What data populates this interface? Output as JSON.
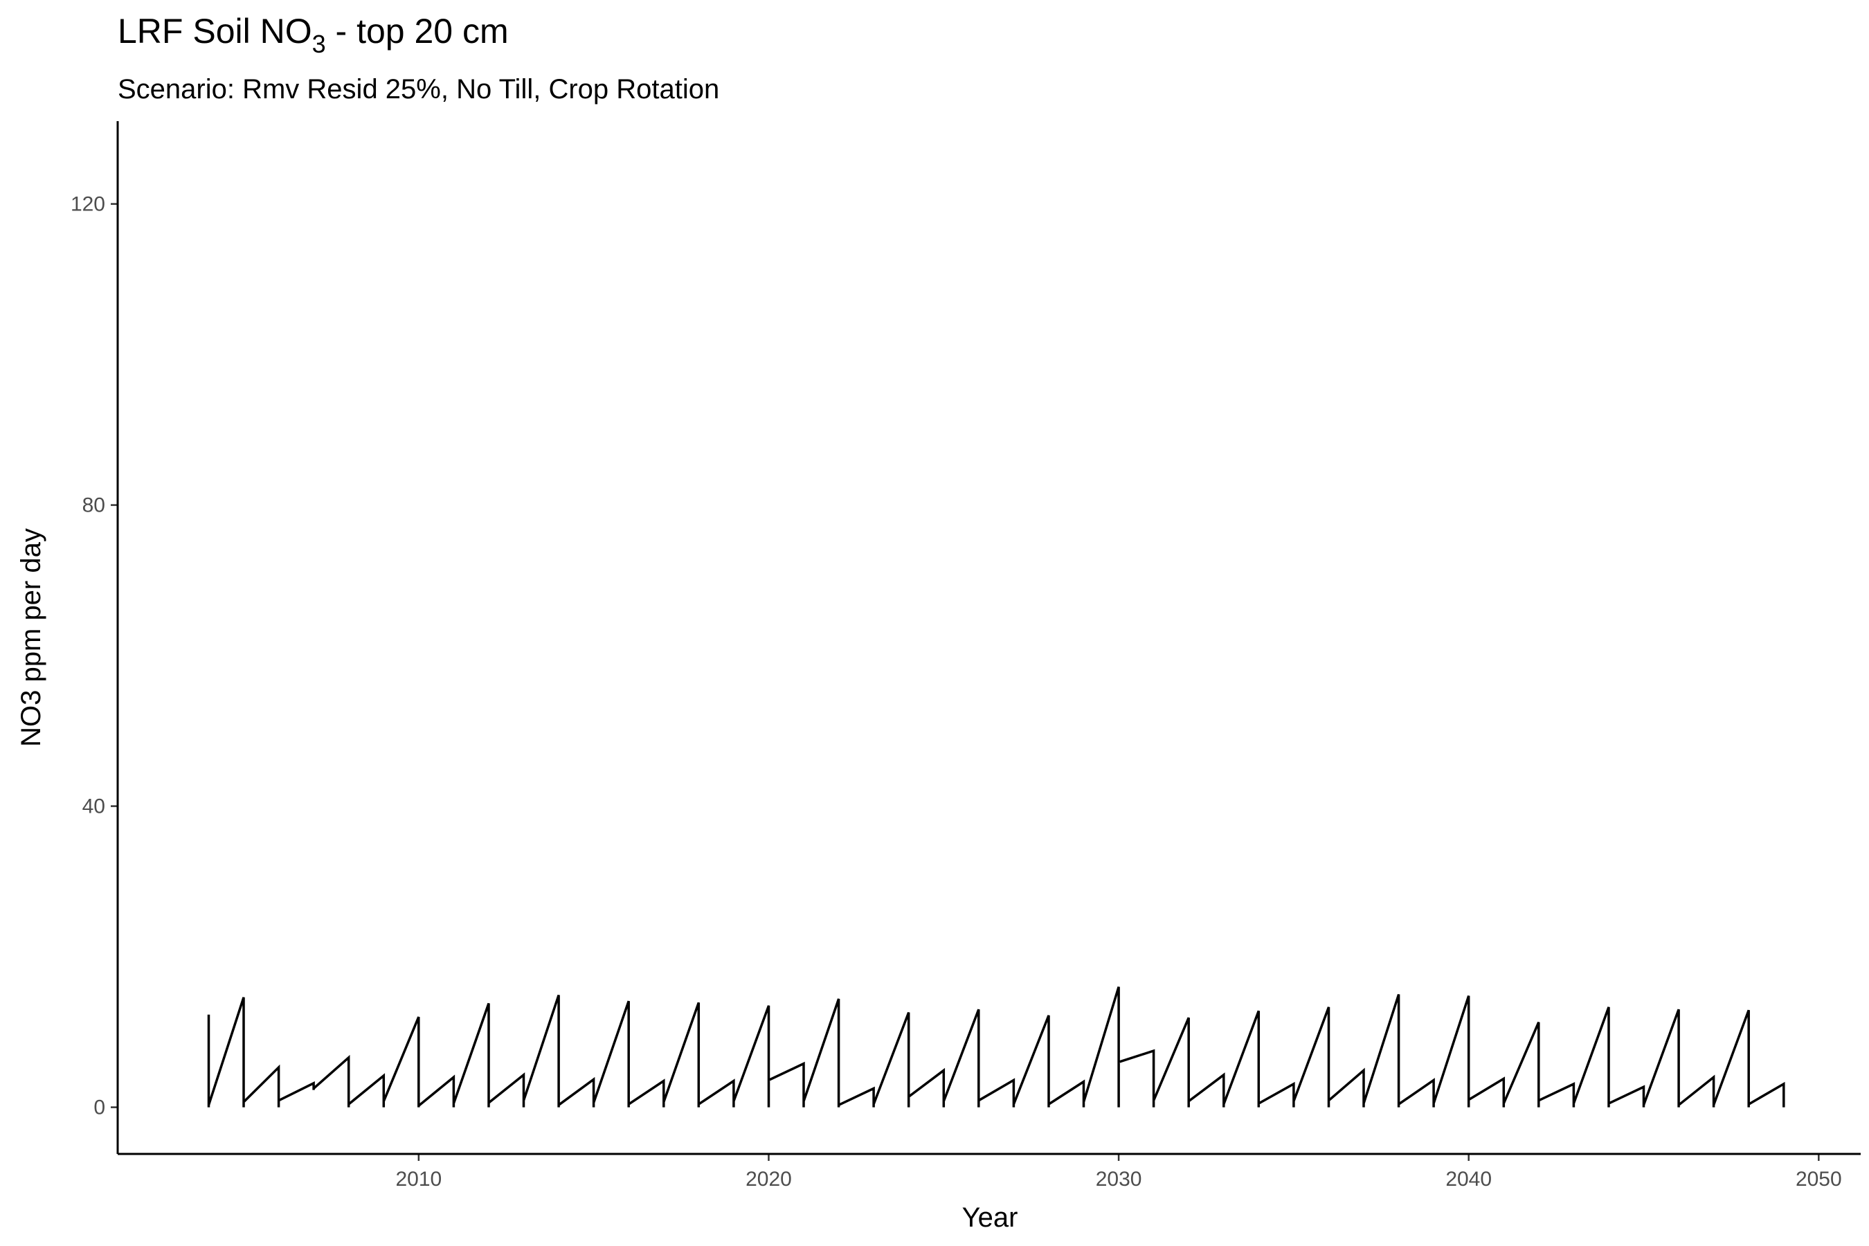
{
  "chart_data": {
    "type": "line",
    "title_main": "LRF Soil NO",
    "title_sub3": "3",
    "title_rest": " - top 20 cm",
    "subtitle": "Scenario: Rmv Resid 25%, No Till, Crop Rotation",
    "xlabel": "Year",
    "ylabel": "NO3 ppm per day",
    "xlim": [
      2001.4,
      2051.2
    ],
    "ylim": [
      -6.2,
      131
    ],
    "x_ticks": [
      2010,
      2020,
      2030,
      2040,
      2050
    ],
    "x_tick_labels": [
      "2010",
      "2020",
      "2030",
      "2040",
      "2050"
    ],
    "y_ticks": [
      0,
      40,
      80,
      120
    ],
    "y_tick_labels": [
      "0",
      "40",
      "80",
      "120"
    ],
    "grid": false,
    "series": [
      {
        "color": "#000000",
        "x": [
          2004,
          2004,
          2004,
          2005,
          2005,
          2005,
          2006,
          2006,
          2006,
          2007,
          2007,
          2007,
          2008,
          2008,
          2008,
          2009,
          2009,
          2009,
          2010,
          2010,
          2010,
          2011,
          2011,
          2011,
          2012,
          2012,
          2012,
          2013,
          2013,
          2013,
          2014,
          2014,
          2014,
          2015,
          2015,
          2015,
          2016,
          2016,
          2016,
          2017,
          2017,
          2017,
          2018,
          2018,
          2018,
          2019,
          2019,
          2019,
          2020,
          2020,
          2020,
          2021,
          2021,
          2021,
          2022,
          2022,
          2022,
          2023,
          2023,
          2023,
          2024,
          2024,
          2024,
          2025,
          2025,
          2025,
          2026,
          2026,
          2026,
          2027,
          2027,
          2027,
          2028,
          2028,
          2028,
          2029,
          2029,
          2029,
          2030,
          2030,
          2030,
          2031,
          2031,
          2031,
          2032,
          2032,
          2032,
          2033,
          2033,
          2033,
          2034,
          2034,
          2034,
          2035,
          2035,
          2035,
          2036,
          2036,
          2036,
          2037,
          2037,
          2037,
          2038,
          2038,
          2038,
          2039,
          2039,
          2039,
          2040,
          2040,
          2040,
          2041,
          2041,
          2041,
          2042,
          2042,
          2042,
          2043,
          2043,
          2043,
          2044,
          2044,
          2044,
          2045,
          2045,
          2045,
          2046,
          2046,
          2046,
          2047,
          2047,
          2047,
          2048,
          2048,
          2048,
          2049,
          2049,
          2049
        ],
        "y": [
          12.3,
          0,
          0.3,
          14.6,
          0,
          0.7,
          5.3,
          0,
          0.9,
          3.2,
          2.3,
          2.5,
          6.6,
          0,
          0.4,
          4.2,
          0,
          0.8,
          12.0,
          0,
          0.2,
          4.0,
          0,
          0.5,
          13.8,
          0,
          0.6,
          4.3,
          0,
          0.9,
          14.9,
          0,
          0.3,
          3.7,
          0,
          0.6,
          14.1,
          0,
          0.4,
          3.5,
          0,
          0.7,
          13.9,
          0,
          0.4,
          3.5,
          0,
          0.8,
          13.5,
          0,
          3.6,
          5.8,
          0,
          0.8,
          14.4,
          0,
          0.3,
          2.5,
          0,
          0.4,
          12.6,
          0,
          1.4,
          4.9,
          0,
          0.8,
          13.0,
          0,
          0.9,
          3.6,
          0,
          0.4,
          12.2,
          0,
          0.4,
          3.4,
          0,
          0.7,
          16.0,
          0,
          6.0,
          7.5,
          0,
          0.9,
          11.9,
          0,
          0.8,
          4.3,
          0,
          0.4,
          12.8,
          0,
          0.5,
          3.1,
          0,
          0.8,
          13.3,
          0,
          0.9,
          4.9,
          0,
          0.5,
          15.0,
          0,
          0.4,
          3.6,
          0,
          0.5,
          14.8,
          0,
          1.0,
          3.8,
          0,
          0.5,
          11.3,
          0,
          0.9,
          3.1,
          0,
          0.5,
          13.3,
          0,
          0.5,
          2.7,
          0,
          0.3,
          13.0,
          0,
          0.3,
          4.0,
          0,
          0.3,
          12.9,
          0,
          0.4,
          3.1,
          0,
          0.3
        ]
      }
    ]
  }
}
